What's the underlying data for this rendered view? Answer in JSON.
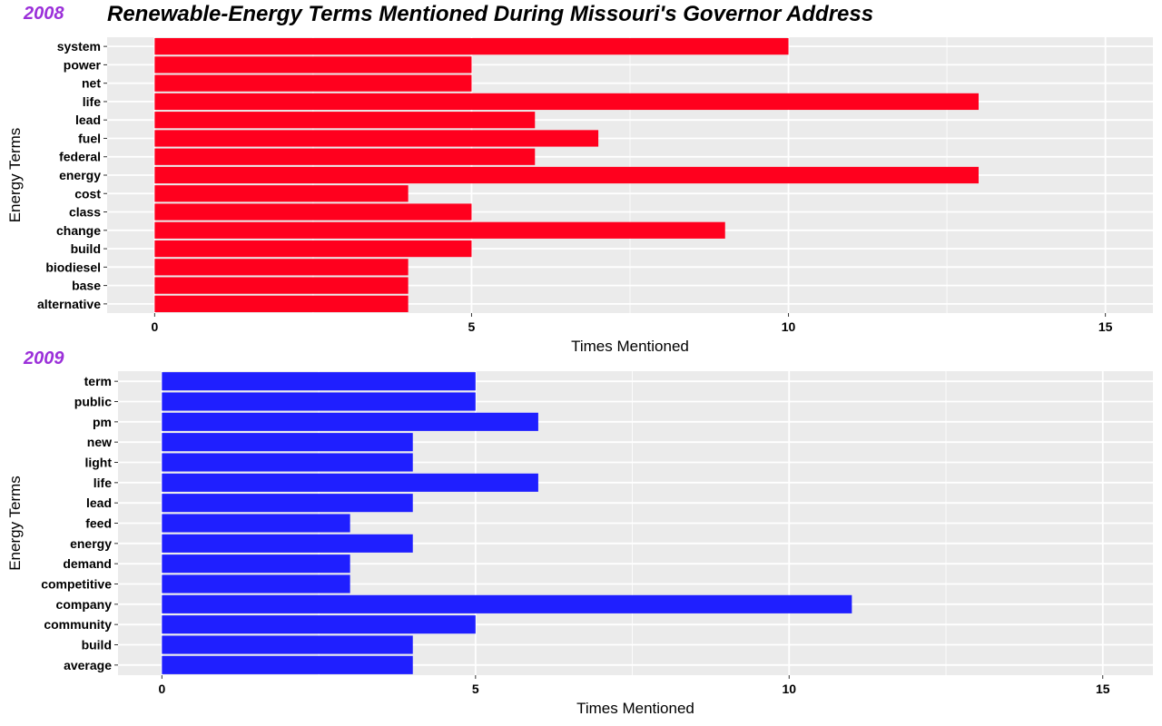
{
  "title": "Renewable-Energy Terms Mentioned During Missouri's Governor Address",
  "colors": {
    "year_label": "#9b30d9",
    "panel_bg": "#ebebeb",
    "grid": "#ffffff"
  },
  "chart_data": [
    {
      "type": "bar",
      "orientation": "horizontal",
      "year_label": "2008",
      "bar_color": "#ff001e",
      "categories": [
        "system",
        "power",
        "net",
        "life",
        "lead",
        "fuel",
        "federal",
        "energy",
        "cost",
        "class",
        "change",
        "build",
        "biodiesel",
        "base",
        "alternative"
      ],
      "values": [
        10,
        5,
        5,
        13,
        6,
        7,
        6,
        13,
        4,
        5,
        9,
        5,
        4,
        4,
        4
      ],
      "xlabel": "Times Mentioned",
      "ylabel": "Energy Terms",
      "xlim": [
        -0.75,
        15.75
      ],
      "xticks": [
        0,
        5,
        10,
        15
      ],
      "grid": true
    },
    {
      "type": "bar",
      "orientation": "horizontal",
      "year_label": "2009",
      "bar_color": "#1f1fff",
      "categories": [
        "term",
        "public",
        "pm",
        "new",
        "light",
        "life",
        "lead",
        "feed",
        "energy",
        "demand",
        "competitive",
        "company",
        "community",
        "build",
        "average"
      ],
      "values": [
        5,
        5,
        6,
        4,
        4,
        6,
        4,
        3,
        4,
        3,
        3,
        11,
        5,
        4,
        4
      ],
      "xlabel": "Times Mentioned",
      "ylabel": "Energy Terms",
      "xlim": [
        -0.7,
        15.8
      ],
      "xticks": [
        0,
        5,
        10,
        15
      ],
      "grid": true
    }
  ]
}
